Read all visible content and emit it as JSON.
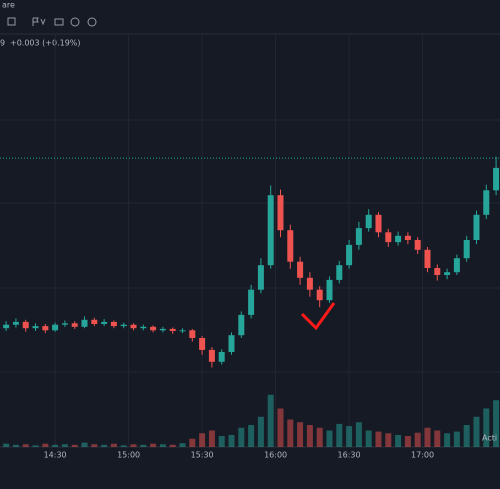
{
  "header": {
    "symbol_fragment": "are",
    "legend_price_fragment": "9",
    "legend_change": "+0.003 (+0.19%)"
  },
  "chart_data": {
    "type": "candlestick",
    "x": [
      850,
      854,
      858,
      862,
      866,
      870,
      874,
      878,
      882,
      886,
      890,
      894,
      898,
      902,
      906,
      910,
      914,
      918,
      922,
      926,
      930,
      934,
      938,
      942,
      946,
      950,
      954,
      958,
      962,
      966,
      970,
      974,
      978,
      982,
      986,
      990,
      994,
      998,
      1002,
      1006,
      1010,
      1014,
      1018,
      1022,
      1026,
      1030,
      1034,
      1038,
      1042,
      1046,
      1050
    ],
    "open": [
      1.556,
      1.5565,
      1.5569,
      1.556,
      1.5563,
      1.5557,
      1.5565,
      1.5567,
      1.5562,
      1.5572,
      1.5566,
      1.5569,
      1.5563,
      1.5565,
      1.556,
      1.5562,
      1.5557,
      1.5559,
      1.5556,
      1.5557,
      1.5546,
      1.5529,
      1.5512,
      1.5526,
      1.555,
      1.5579,
      1.5615,
      1.565,
      1.575,
      1.57,
      1.5655,
      1.5632,
      1.5615,
      1.56,
      1.5629,
      1.565,
      1.5679,
      1.5703,
      1.5722,
      1.5697,
      1.5683,
      1.5692,
      1.5686,
      1.5672,
      1.5646,
      1.5636,
      1.564,
      1.566,
      1.5686,
      1.5722,
      1.5757
    ],
    "high": [
      1.557,
      1.5574,
      1.5572,
      1.5567,
      1.5566,
      1.5568,
      1.5571,
      1.557,
      1.5577,
      1.5575,
      1.5573,
      1.5571,
      1.5568,
      1.5567,
      1.5565,
      1.5564,
      1.5562,
      1.5561,
      1.556,
      1.5559,
      1.5549,
      1.5533,
      1.553,
      1.5554,
      1.5584,
      1.5622,
      1.566,
      1.5764,
      1.5758,
      1.5708,
      1.5662,
      1.564,
      1.562,
      1.5634,
      1.5656,
      1.5686,
      1.5712,
      1.573,
      1.5726,
      1.5702,
      1.5698,
      1.5697,
      1.569,
      1.5676,
      1.5651,
      1.5645,
      1.5665,
      1.5692,
      1.5728,
      1.5765,
      1.5805
    ],
    "low": [
      1.5556,
      1.5561,
      1.5555,
      1.5556,
      1.5553,
      1.5555,
      1.5562,
      1.5559,
      1.556,
      1.5563,
      1.5563,
      1.556,
      1.556,
      1.5557,
      1.5557,
      1.5554,
      1.5554,
      1.5552,
      1.5553,
      1.5541,
      1.5522,
      1.5504,
      1.5508,
      1.5522,
      1.5546,
      1.5574,
      1.561,
      1.5645,
      1.569,
      1.5645,
      1.5622,
      1.5605,
      1.559,
      1.5596,
      1.5624,
      1.5645,
      1.5672,
      1.5698,
      1.569,
      1.5676,
      1.5678,
      1.568,
      1.5666,
      1.564,
      1.5628,
      1.563,
      1.5636,
      1.5655,
      1.568,
      1.5716,
      1.575
    ],
    "close": [
      1.5565,
      1.5569,
      1.556,
      1.5563,
      1.5557,
      1.5565,
      1.5567,
      1.5562,
      1.5572,
      1.5566,
      1.5569,
      1.5563,
      1.5565,
      1.556,
      1.5562,
      1.5557,
      1.5559,
      1.5556,
      1.5557,
      1.5546,
      1.5529,
      1.5512,
      1.5526,
      1.555,
      1.5579,
      1.5615,
      1.565,
      1.575,
      1.57,
      1.5655,
      1.5632,
      1.5615,
      1.56,
      1.5629,
      1.565,
      1.5679,
      1.5703,
      1.5722,
      1.5697,
      1.5683,
      1.5692,
      1.5686,
      1.5672,
      1.5646,
      1.5636,
      1.564,
      1.566,
      1.5686,
      1.5722,
      1.5757,
      1.5789
    ],
    "volume": [
      6,
      4,
      5,
      3,
      6,
      4,
      5,
      4,
      8,
      5,
      4,
      6,
      3,
      5,
      4,
      6,
      5,
      4,
      7,
      15,
      25,
      30,
      20,
      22,
      35,
      40,
      55,
      95,
      70,
      50,
      45,
      40,
      35,
      30,
      42,
      38,
      45,
      30,
      28,
      25,
      22,
      20,
      26,
      35,
      30,
      25,
      28,
      40,
      55,
      70,
      85
    ],
    "volume_lim": [
      0,
      100
    ],
    "price_line": 1.5803,
    "xlim": [
      847.5,
      1051.6
    ],
    "ylim": [
      1.5386,
      1.5986
    ],
    "xticks": [
      {
        "value": 870,
        "label": "14:30"
      },
      {
        "value": 900,
        "label": "15:00"
      },
      {
        "value": 930,
        "label": "15:30"
      },
      {
        "value": 960,
        "label": "16:00"
      },
      {
        "value": 990,
        "label": "16:30"
      },
      {
        "value": 1020,
        "label": "17:00"
      }
    ],
    "up_color": "#26a69a",
    "down_color": "#ef5350",
    "grid": true,
    "watermark": "Acti"
  }
}
